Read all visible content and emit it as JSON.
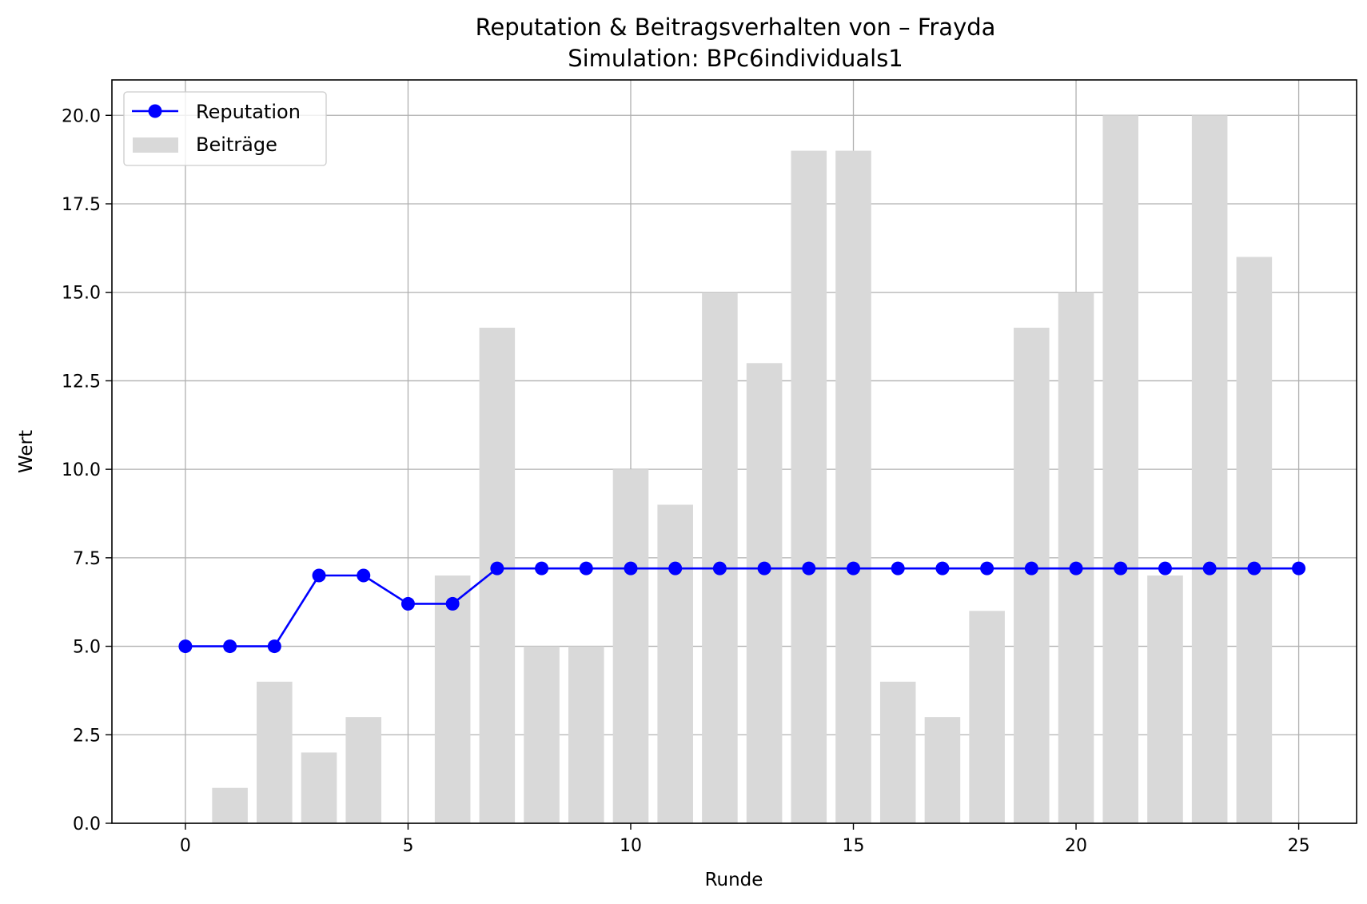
{
  "chart_data": {
    "type": "bar+line",
    "title": "Reputation & Beitragsverhalten von – Frayda",
    "subtitle": "Simulation: BPc6individuals1",
    "xlabel": "Runde",
    "ylabel": "Wert",
    "xlim": [
      -1.65,
      26.3
    ],
    "ylim": [
      0,
      21
    ],
    "x_ticks": [
      0,
      5,
      10,
      15,
      20,
      25
    ],
    "x_tick_labels": [
      "0",
      "5",
      "10",
      "15",
      "20",
      "25"
    ],
    "y_ticks": [
      0,
      2.5,
      5,
      7.5,
      10,
      12.5,
      15,
      17.5,
      20
    ],
    "y_tick_labels": [
      "0.0",
      "2.5",
      "5.0",
      "7.5",
      "10.0",
      "12.5",
      "15.0",
      "17.5",
      "20.0"
    ],
    "grid": true,
    "legend_position": "top-left",
    "series": [
      {
        "name": "Reputation",
        "kind": "line",
        "marker": "circle",
        "color": "#0000ff",
        "x": [
          0,
          1,
          2,
          3,
          4,
          5,
          6,
          7,
          8,
          9,
          10,
          11,
          12,
          13,
          14,
          15,
          16,
          17,
          18,
          19,
          20,
          21,
          22,
          23,
          24,
          25
        ],
        "values": [
          5.0,
          5.0,
          5.0,
          7.0,
          7.0,
          6.2,
          6.2,
          7.2,
          7.2,
          7.2,
          7.2,
          7.2,
          7.2,
          7.2,
          7.2,
          7.2,
          7.2,
          7.2,
          7.2,
          7.2,
          7.2,
          7.2,
          7.2,
          7.2,
          7.2,
          7.2
        ]
      },
      {
        "name": "Beiträge",
        "kind": "bar",
        "color": "#d9d9d9",
        "x": [
          1,
          2,
          3,
          4,
          5,
          6,
          7,
          8,
          9,
          10,
          11,
          12,
          13,
          14,
          15,
          16,
          17,
          18,
          19,
          20,
          21,
          22,
          23,
          24
        ],
        "values": [
          1,
          4,
          2,
          3,
          0,
          7,
          14,
          5,
          5,
          10,
          9,
          15,
          13,
          19,
          19,
          4,
          3,
          6,
          14,
          15,
          20,
          7,
          20,
          16
        ]
      }
    ]
  }
}
